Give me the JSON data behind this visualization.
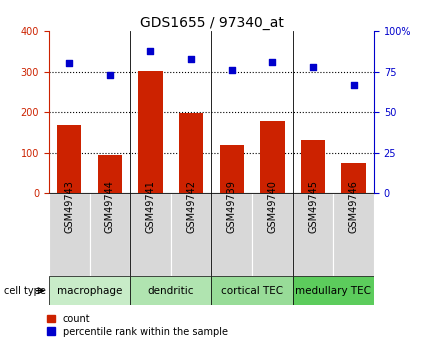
{
  "title": "GDS1655 / 97340_at",
  "samples": [
    "GSM49743",
    "GSM49744",
    "GSM49741",
    "GSM49742",
    "GSM49739",
    "GSM49740",
    "GSM49745",
    "GSM49746"
  ],
  "counts": [
    168,
    95,
    302,
    198,
    120,
    178,
    132,
    75
  ],
  "percentiles": [
    80,
    73,
    88,
    83,
    76,
    81,
    78,
    67
  ],
  "bar_color": "#cc2200",
  "scatter_color": "#0000cc",
  "left_ylim": [
    0,
    400
  ],
  "right_ylim": [
    0,
    100
  ],
  "left_yticks": [
    0,
    100,
    200,
    300,
    400
  ],
  "right_yticks": [
    0,
    25,
    50,
    75,
    100
  ],
  "right_yticklabels": [
    "0",
    "25",
    "50",
    "75",
    "100%"
  ],
  "cell_groups": [
    {
      "label": "macrophage",
      "indices": [
        0,
        1
      ],
      "color": "#c8ecc8"
    },
    {
      "label": "dendritic",
      "indices": [
        2,
        3
      ],
      "color": "#b0e4b0"
    },
    {
      "label": "cortical TEC",
      "indices": [
        4,
        5
      ],
      "color": "#98dc98"
    },
    {
      "label": "medullary TEC",
      "indices": [
        6,
        7
      ],
      "color": "#5ccc5c"
    }
  ],
  "sample_box_color": "#d8d8d8",
  "cell_type_label": "cell type",
  "legend_count": "count",
  "legend_percentile": "percentile rank within the sample",
  "title_fontsize": 10,
  "tick_label_fontsize": 7,
  "cell_type_fontsize": 7.5,
  "legend_fontsize": 7
}
